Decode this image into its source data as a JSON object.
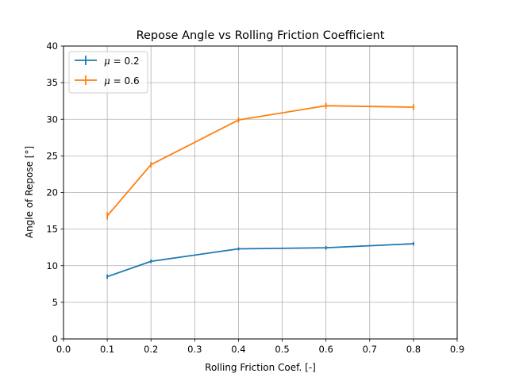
{
  "chart_data": {
    "type": "line",
    "title": "Repose Angle vs Rolling Friction Coefficient",
    "xlabel": "Rolling Friction Coef. [-]",
    "ylabel": "Angle of Repose [°]",
    "xlim": [
      0.0,
      0.9
    ],
    "ylim": [
      0,
      40
    ],
    "xticks": [
      "0.0",
      "0.1",
      "0.2",
      "0.3",
      "0.4",
      "0.5",
      "0.6",
      "0.7",
      "0.8",
      "0.9"
    ],
    "yticks": [
      "0",
      "5",
      "10",
      "15",
      "20",
      "25",
      "30",
      "35",
      "40"
    ],
    "grid": true,
    "legend_position": "top-left",
    "series": [
      {
        "name_symbol": "μ",
        "name_value": " = 0.2",
        "color": "#1f77b4",
        "x": [
          0.1,
          0.2,
          0.4,
          0.6,
          0.8
        ],
        "y": [
          8.5,
          10.6,
          12.3,
          12.45,
          13.0
        ],
        "yerr": [
          0.3,
          0.25,
          0.2,
          0.25,
          0.25
        ]
      },
      {
        "name_symbol": "μ",
        "name_value": " = 0.6",
        "color": "#ff7f0e",
        "x": [
          0.1,
          0.2,
          0.4,
          0.6,
          0.8
        ],
        "y": [
          16.8,
          23.8,
          29.9,
          31.85,
          31.65
        ],
        "yerr": [
          0.5,
          0.4,
          0.35,
          0.4,
          0.4
        ]
      }
    ]
  }
}
